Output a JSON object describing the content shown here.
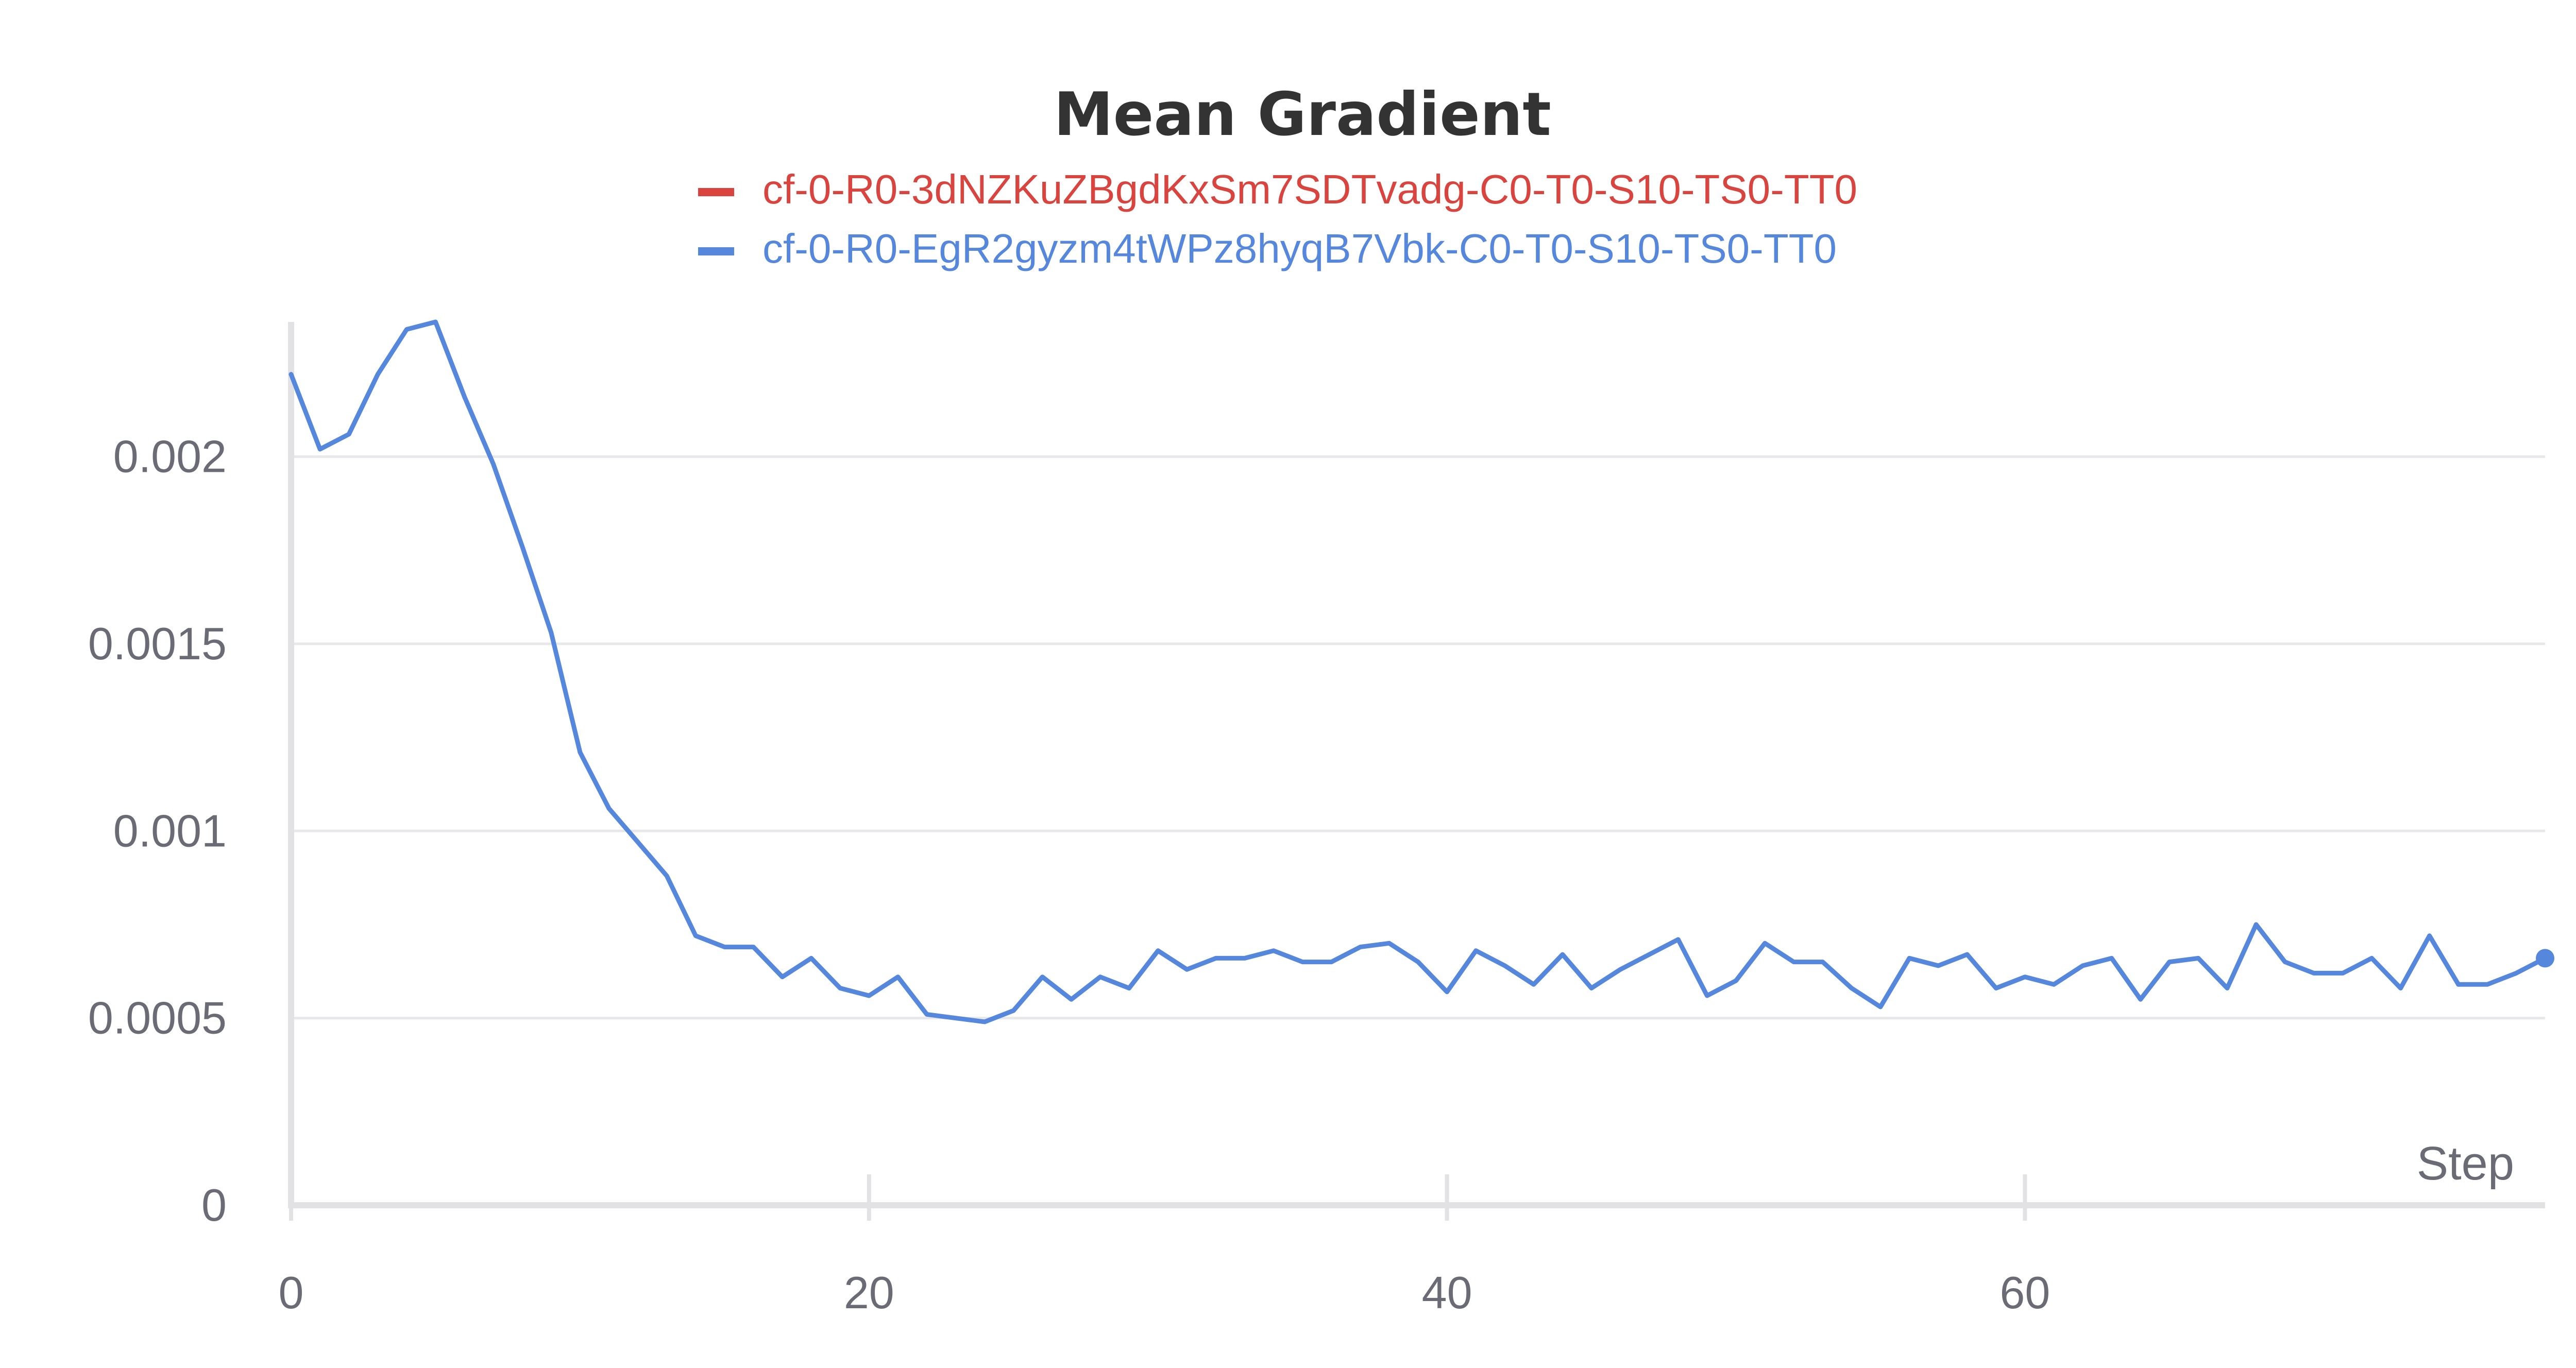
{
  "chart_data": {
    "type": "line",
    "title": "Mean Gradient",
    "xlabel": "Step",
    "ylabel": "",
    "xlim": [
      0,
      78
    ],
    "ylim": [
      0,
      0.00236
    ],
    "x_ticks": [
      0,
      20,
      40,
      60
    ],
    "x_tick_labels": [
      "0",
      "20",
      "40",
      "60"
    ],
    "y_ticks": [
      0,
      0.0005,
      0.001,
      0.0015,
      0.002
    ],
    "y_tick_labels": [
      "0",
      "0.0005",
      "0.001",
      "0.0015",
      "0.002"
    ],
    "grid": true,
    "legend_position": "top-center",
    "series": [
      {
        "name": "cf-0-R0-3dNZKuZBgdKxSm7SDTvadg-C0-T0-S10-TS0-TT0",
        "color": "#d9443f",
        "x": [],
        "y": []
      },
      {
        "name": "cf-0-R0-EgR2gyzm4tWPz8hyqB7Vbk-C0-T0-S10-TS0-TT0",
        "color": "#5587dd",
        "x": [
          0,
          1,
          2,
          3,
          4,
          5,
          6,
          7,
          8,
          9,
          10,
          11,
          12,
          13,
          14,
          15,
          16,
          17,
          18,
          19,
          20,
          21,
          22,
          23,
          24,
          25,
          26,
          27,
          28,
          29,
          30,
          31,
          32,
          33,
          34,
          35,
          36,
          37,
          38,
          39,
          40,
          41,
          42,
          43,
          44,
          45,
          46,
          47,
          48,
          49,
          50,
          51,
          52,
          53,
          54,
          55,
          56,
          57,
          58,
          59,
          60,
          61,
          62,
          63,
          64,
          65,
          66,
          67,
          68,
          69,
          70,
          71,
          72,
          73,
          74,
          75,
          76,
          77,
          78
        ],
        "y": [
          0.00222,
          0.00202,
          0.00206,
          0.00222,
          0.00234,
          0.00236,
          0.00216,
          0.00198,
          0.00176,
          0.00153,
          0.00121,
          0.00106,
          0.00097,
          0.00088,
          0.00072,
          0.00069,
          0.00069,
          0.00061,
          0.00066,
          0.00058,
          0.00056,
          0.00061,
          0.00051,
          0.0005,
          0.00049,
          0.00052,
          0.00061,
          0.00055,
          0.00061,
          0.00058,
          0.00068,
          0.00063,
          0.00066,
          0.00066,
          0.00068,
          0.00065,
          0.00065,
          0.00069,
          0.0007,
          0.00065,
          0.00057,
          0.00068,
          0.00064,
          0.00059,
          0.00067,
          0.00058,
          0.00063,
          0.00067,
          0.00071,
          0.00056,
          0.0006,
          0.0007,
          0.00065,
          0.00065,
          0.00058,
          0.00053,
          0.00066,
          0.00064,
          0.00067,
          0.00058,
          0.00061,
          0.00059,
          0.00064,
          0.00066,
          0.00055,
          0.00065,
          0.00066,
          0.00058,
          0.00075,
          0.00065,
          0.00062,
          0.00062,
          0.00066,
          0.00058,
          0.00072,
          0.00059,
          0.00059,
          0.00062,
          0.00066
        ]
      }
    ]
  }
}
